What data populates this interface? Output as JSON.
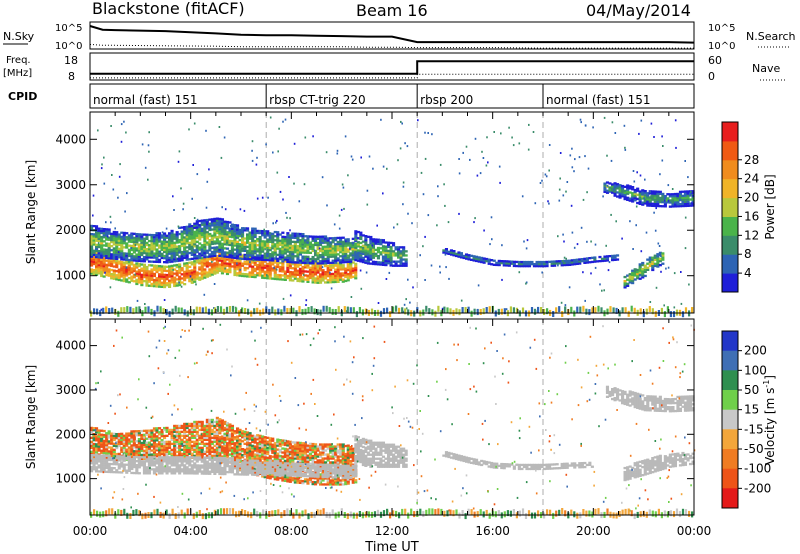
{
  "header": {
    "title": "Blackstone (fitACF)",
    "beam": "Beam 16",
    "date": "04/May/2014"
  },
  "nsky_panel": {
    "left_label": "N.Sky",
    "left_ticks": [
      "10^5",
      "10^0"
    ],
    "right_ticks": [
      "10^5",
      "10^0"
    ],
    "right_label": "N.Search",
    "right_label_style": "dotted"
  },
  "freq_panel": {
    "left_label_top": "Freq.",
    "left_label_unit": "[MHz]",
    "left_ticks": [
      "18",
      "8"
    ],
    "right_ticks": [
      "60",
      "0"
    ],
    "right_label": "Nave",
    "right_label_style": "dotted"
  },
  "cpid_panel": {
    "label": "CPID",
    "segments": [
      {
        "label": "normal (fast) 151",
        "start_hour": 0,
        "end_hour": 7
      },
      {
        "label": "rbsp CT-trig 220",
        "start_hour": 7,
        "end_hour": 13
      },
      {
        "label": "rbsp 200",
        "start_hour": 13,
        "end_hour": 18
      },
      {
        "label": "normal (fast) 151",
        "start_hour": 18,
        "end_hour": 24
      }
    ]
  },
  "time_axis": {
    "label": "Time UT",
    "ticks": [
      "00:00",
      "04:00",
      "08:00",
      "12:00",
      "16:00",
      "20:00",
      "00:00"
    ],
    "range_hours": [
      0,
      24
    ]
  },
  "range_axis": {
    "label": "Slant Range [km]",
    "ticks": [
      "1000",
      "2000",
      "3000",
      "4000"
    ],
    "tick_values": [
      1000,
      2000,
      3000,
      4000
    ],
    "range_km": [
      180,
      4600
    ]
  },
  "power_colorbar": {
    "label": "Power [dB]",
    "ticks": [
      "4",
      "8",
      "12",
      "16",
      "20",
      "24",
      "28"
    ],
    "colors": [
      "#1f1fd8",
      "#2d64b4",
      "#3a8c6a",
      "#4ab34a",
      "#b8c83c",
      "#f0b428",
      "#f08c1e",
      "#f05a14",
      "#e81e1e"
    ]
  },
  "velocity_colorbar": {
    "label": "Velocity",
    "unit": "[m s",
    "unit_sup": "-1",
    "unit_close": "]",
    "ticks": [
      "200",
      "100",
      "50",
      "15",
      "-15",
      "-50",
      "-100",
      "-200"
    ],
    "colors": [
      "#2236c8",
      "#3f6fb5",
      "#2f8f50",
      "#6fcf4a",
      "#c8c8c8",
      "#f3a63a",
      "#f07c22",
      "#ee5418",
      "#e41a1a"
    ]
  },
  "colors": {
    "data_white": "#ffffff",
    "dashed_line": "#999999",
    "ground_scatter": "#b9b9b9"
  },
  "chart_data": [
    {
      "type": "line",
      "name": "nsky_nsearch",
      "x_hours": [
        0,
        0.5,
        1,
        3,
        5,
        6,
        7,
        8,
        9,
        10,
        11,
        12,
        13,
        14,
        16,
        18,
        20,
        21,
        22,
        23,
        24
      ],
      "nsky_log": [
        5.0,
        4.2,
        4.1,
        3.9,
        3.4,
        3.1,
        3.0,
        3.0,
        2.9,
        2.8,
        2.7,
        2.7,
        1.5,
        1.5,
        1.5,
        1.5,
        1.5,
        1.5,
        1.5,
        1.5,
        1.4
      ],
      "nsearch_log": [
        1.0,
        0.8,
        0.8,
        0.7,
        0.6,
        0.5,
        0.5,
        0.5,
        0.5,
        0.5,
        0.4,
        0.4,
        0.3,
        0.3,
        0.3,
        0.2,
        0.2,
        0.2,
        0.2,
        0.2,
        0.2
      ],
      "ylim": [
        0,
        5
      ]
    },
    {
      "type": "line",
      "name": "freq_nave",
      "x_hours": [
        0,
        13,
        13,
        24
      ],
      "freq_mhz": [
        10.5,
        10.5,
        15.5,
        15.5
      ],
      "nave": [
        5,
        5,
        14,
        14
      ],
      "ylim_freq": [
        8,
        18
      ],
      "ylim_nave": [
        0,
        60
      ]
    },
    {
      "type": "heatmap",
      "name": "power",
      "xlim_hours": [
        0,
        24
      ],
      "ylim_km": [
        180,
        4600
      ],
      "features": [
        {
          "kind": "band",
          "t": [
            0,
            1,
            2,
            3,
            4,
            5,
            6,
            7,
            8,
            9,
            10,
            10.5
          ],
          "r_center": [
            1300,
            1150,
            1000,
            950,
            1050,
            1300,
            1200,
            1150,
            1100,
            1050,
            1050,
            1100
          ],
          "r_width": [
            550,
            500,
            450,
            450,
            450,
            500,
            450,
            450,
            450,
            450,
            400,
            350
          ],
          "value": 26
        },
        {
          "kind": "band",
          "t": [
            0,
            1,
            2,
            3,
            4,
            5,
            6,
            7,
            8,
            9,
            10,
            10.5
          ],
          "r_center": [
            1750,
            1650,
            1600,
            1600,
            1750,
            1850,
            1700,
            1650,
            1600,
            1550,
            1550,
            1550
          ],
          "r_width": [
            700,
            600,
            600,
            650,
            800,
            850,
            700,
            650,
            650,
            600,
            550,
            500
          ],
          "value": 12
        },
        {
          "kind": "band",
          "t": [
            10.5,
            11,
            12,
            12.5
          ],
          "r_center": [
            1650,
            1550,
            1450,
            1400
          ],
          "r_width": [
            650,
            600,
            500,
            400
          ],
          "value": 10
        },
        {
          "kind": "band",
          "t": [
            14,
            15,
            16,
            17,
            18,
            19,
            20,
            21
          ],
          "r_center": [
            1550,
            1400,
            1280,
            1250,
            1250,
            1280,
            1350,
            1400
          ],
          "r_width": [
            120,
            120,
            120,
            120,
            120,
            120,
            120,
            120
          ],
          "value": 6
        },
        {
          "kind": "band",
          "t": [
            20.4,
            21,
            22,
            23,
            24
          ],
          "r_center": [
            2950,
            2850,
            2700,
            2650,
            2700
          ],
          "r_width": [
            250,
            300,
            350,
            300,
            350
          ],
          "value": 8
        },
        {
          "kind": "band",
          "t": [
            21.2,
            21.6,
            22,
            22.4,
            22.8
          ],
          "r_center": [
            850,
            1000,
            1150,
            1300,
            1400
          ],
          "r_width": [
            250,
            300,
            350,
            300,
            250
          ],
          "value": 14
        }
      ]
    },
    {
      "type": "heatmap",
      "name": "velocity",
      "xlim_hours": [
        0,
        24
      ],
      "ylim_km": [
        180,
        4600
      ],
      "features": [
        {
          "kind": "band",
          "t": [
            0,
            1,
            2,
            3,
            4,
            5,
            6,
            7,
            8,
            9,
            10,
            10.5
          ],
          "r_center": [
            1800,
            1700,
            1750,
            1800,
            1850,
            1900,
            1600,
            1450,
            1350,
            1300,
            1300,
            1300
          ],
          "r_width": [
            700,
            600,
            650,
            700,
            800,
            900,
            900,
            900,
            900,
            900,
            900,
            800
          ],
          "value": -60
        },
        {
          "kind": "band",
          "t": [
            0,
            2,
            4,
            6,
            8,
            10,
            10.5
          ],
          "r_center": [
            1350,
            1300,
            1300,
            1250,
            1200,
            1150,
            1150
          ],
          "r_width": [
            400,
            400,
            400,
            350,
            300,
            300,
            300
          ],
          "value": 0
        },
        {
          "kind": "band",
          "t": [
            10.5,
            11,
            12,
            12.5
          ],
          "r_center": [
            1650,
            1550,
            1500,
            1450
          ],
          "r_width": [
            600,
            600,
            500,
            400
          ],
          "value": 0
        },
        {
          "kind": "band",
          "t": [
            14,
            15,
            16,
            17,
            18,
            19,
            20
          ],
          "r_center": [
            1550,
            1400,
            1280,
            1250,
            1250,
            1280,
            1300
          ],
          "r_width": [
            100,
            100,
            100,
            100,
            100,
            100,
            100
          ],
          "value": 0
        },
        {
          "kind": "band",
          "t": [
            20.5,
            21,
            22,
            23,
            24
          ],
          "r_center": [
            2950,
            2850,
            2700,
            2650,
            2700
          ],
          "r_width": [
            250,
            300,
            350,
            300,
            350
          ],
          "value": 0
        },
        {
          "kind": "band",
          "t": [
            21.2,
            22,
            23,
            24
          ],
          "r_center": [
            1100,
            1250,
            1400,
            1450
          ],
          "r_width": [
            300,
            350,
            300,
            250
          ],
          "value": 0
        }
      ]
    }
  ]
}
